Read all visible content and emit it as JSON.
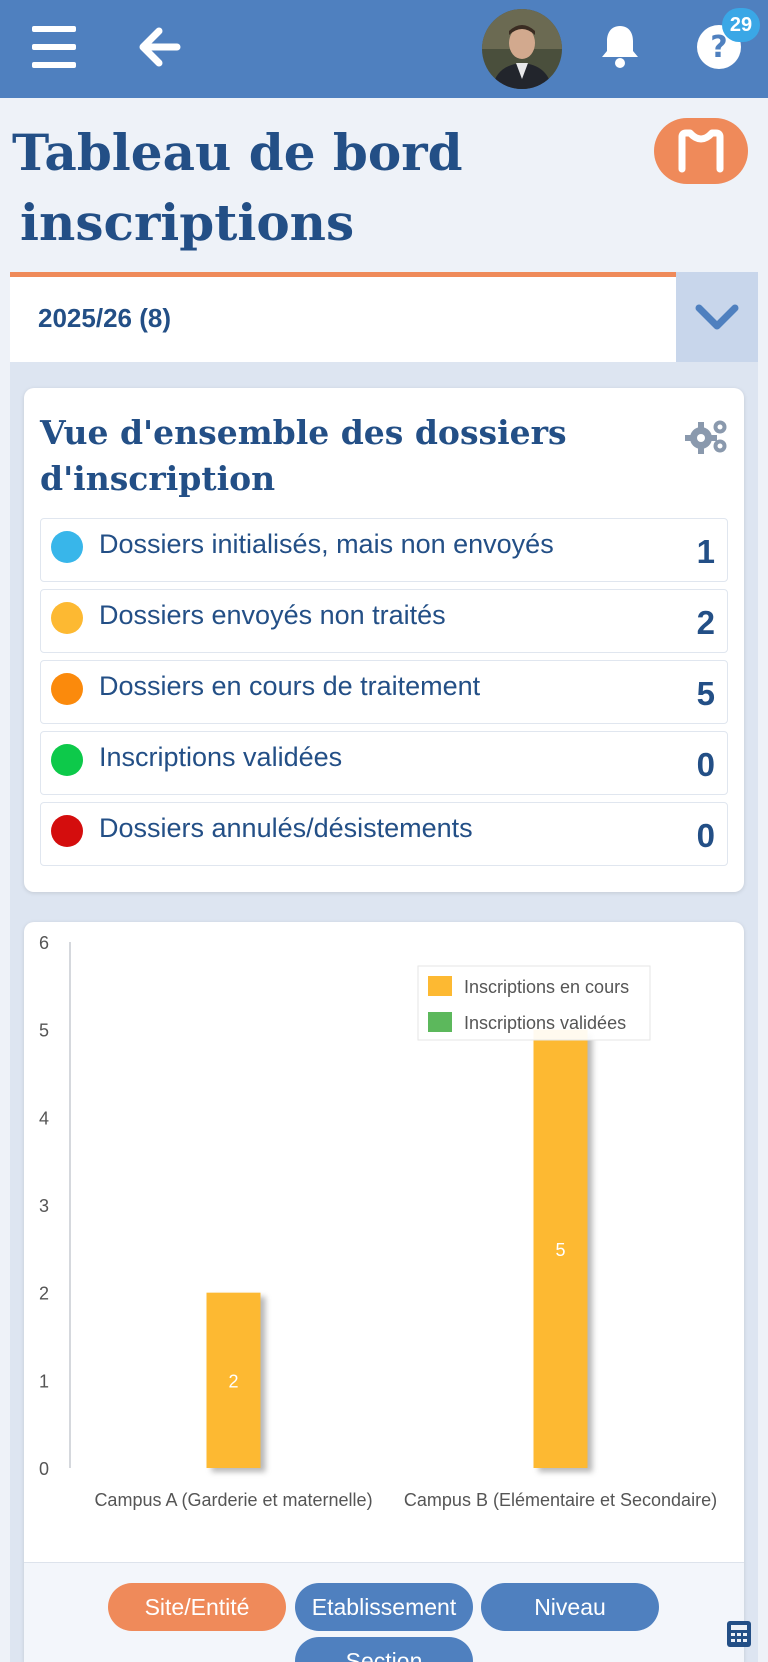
{
  "header": {
    "menu_icon": "hamburger-icon",
    "back_icon": "arrow-left-icon",
    "bell_icon": "bell-icon",
    "help_icon": "question-icon",
    "help_badge": "29"
  },
  "page": {
    "title_line1": "Tableau de bord",
    "title_line2": "inscriptions"
  },
  "year_selector": {
    "value": "2025/26 (8)"
  },
  "overview": {
    "title": "Vue d'ensemble des dossiers d'inscription",
    "rows": [
      {
        "label": "Dossiers initialisés, mais non envoyés",
        "count": "1",
        "color": "#38b6ea"
      },
      {
        "label": "Dossiers envoyés non traités",
        "count": "2",
        "color": "#fdb932"
      },
      {
        "label": "Dossiers en cours de traitement",
        "count": "5",
        "color": "#fb8a0c"
      },
      {
        "label": "Inscriptions validées",
        "count": "0",
        "color": "#0dc94a"
      },
      {
        "label": "Dossiers annulés/désistements",
        "count": "0",
        "color": "#d40d0d"
      }
    ]
  },
  "chart_data": {
    "type": "bar",
    "categories": [
      "Campus A (Garderie et maternelle)",
      "Campus B (Elémentaire et Secondaire)"
    ],
    "series": [
      {
        "name": "Inscriptions en cours",
        "values": [
          2,
          5
        ],
        "color": "#fdb932"
      },
      {
        "name": "Inscriptions validées",
        "values": [
          0,
          0
        ],
        "color": "#5cb85c"
      }
    ],
    "ylim": [
      0,
      6
    ],
    "yticks": [
      "0",
      "1",
      "2",
      "3",
      "4",
      "5",
      "6"
    ],
    "legend_position": "top-right",
    "grid": false,
    "data_labels": true
  },
  "filters": {
    "site": "Site/Entité",
    "etablissement": "Etablissement",
    "niveau": "Niveau",
    "section": "Section"
  }
}
